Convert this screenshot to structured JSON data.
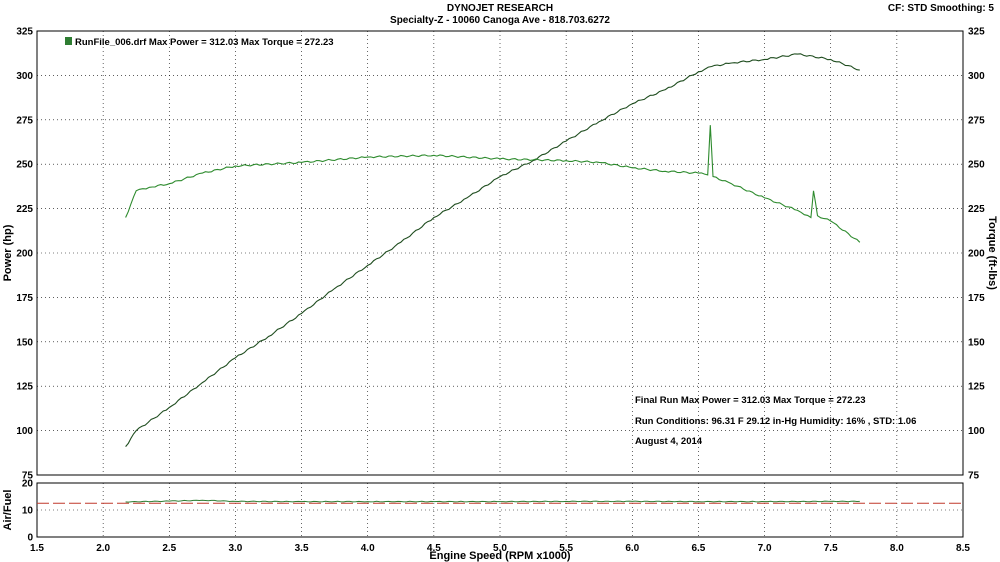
{
  "header": {
    "title": "DYNOJET RESEARCH",
    "subtitle": "Specialty-Z - 10060 Canoga Ave - 818.703.6272",
    "cf_info": "CF: STD  Smoothing: 5"
  },
  "legend": {
    "text": "RunFile_006.drf Max Power = 312.03     Max Torque = 272.23",
    "color": "#2e7d32"
  },
  "annotations": [
    "Final Run Max Power = 312.03  Max Torque = 272.23",
    "Run Conditions: 96.31 F 29.12 in-Hg Humidity: 16% , STD: 1.06",
    "August 4, 2014"
  ],
  "colors": {
    "power": "#1f4d1f",
    "torque": "#2e8b2e",
    "afr": "#2e7d32",
    "afr_target": "#c0392b"
  },
  "chart_data": [
    {
      "type": "line",
      "title": "",
      "xlabel": "Engine Speed (RPM x1000)",
      "ylabel": "Power (hp)",
      "ylabel_right": "Torque (ft-lbs)",
      "xlim": [
        1.5,
        8.5
      ],
      "ylim": [
        75,
        325
      ],
      "ylim_right": [
        75,
        325
      ],
      "x_ticks": [
        "1.5",
        "2.0",
        "2.5",
        "3.0",
        "3.5",
        "4.0",
        "4.5",
        "5.0",
        "5.5",
        "6.0",
        "6.5",
        "7.0",
        "7.5",
        "8.0",
        "8.5"
      ],
      "y_ticks": [
        "75",
        "100",
        "125",
        "150",
        "175",
        "200",
        "225",
        "250",
        "275",
        "300",
        "325"
      ],
      "grid": true,
      "series": [
        {
          "name": "Power",
          "x": [
            2.17,
            2.25,
            2.5,
            2.75,
            3.0,
            3.25,
            3.5,
            3.75,
            4.0,
            4.25,
            4.5,
            4.75,
            5.0,
            5.25,
            5.5,
            5.75,
            6.0,
            6.25,
            6.5,
            6.6,
            6.75,
            7.0,
            7.25,
            7.5,
            7.72
          ],
          "values": [
            91,
            100,
            113,
            127,
            141,
            153,
            166,
            180,
            193,
            206,
            220,
            231,
            243,
            252,
            263,
            274,
            284,
            292,
            302,
            305,
            307,
            309,
            312,
            309,
            303
          ]
        },
        {
          "name": "Torque",
          "x": [
            2.17,
            2.25,
            2.35,
            2.5,
            2.75,
            3.0,
            3.5,
            4.0,
            4.5,
            5.0,
            5.5,
            5.75,
            6.0,
            6.25,
            6.5,
            6.57,
            6.59,
            6.61,
            6.75,
            7.0,
            7.25,
            7.35,
            7.37,
            7.4,
            7.5,
            7.72
          ],
          "values": [
            220,
            235,
            237,
            239,
            245,
            249,
            251,
            254,
            255,
            253,
            252,
            251,
            248,
            246,
            245,
            244,
            272,
            243,
            239,
            231,
            224,
            220,
            235,
            221,
            218,
            206
          ]
        }
      ]
    },
    {
      "type": "line",
      "title": "",
      "xlabel": "Engine Speed (RPM x1000)",
      "ylabel": "Air/Fuel",
      "xlim": [
        1.5,
        8.5
      ],
      "ylim": [
        0,
        20
      ],
      "y_ticks": [
        "0",
        "10",
        "20"
      ],
      "series": [
        {
          "x": [
            2.17,
            2.5,
            2.75,
            3.0,
            3.5,
            4.0,
            4.5,
            5.0,
            5.5,
            6.0,
            6.5,
            7.0,
            7.5,
            7.72
          ],
          "values": [
            13.0,
            13.3,
            13.6,
            13.2,
            13.1,
            13.1,
            13.1,
            13.1,
            13.2,
            13.2,
            13.1,
            13.1,
            13.2,
            13.2
          ]
        },
        {
          "x": [
            1.5,
            8.5
          ],
          "values": [
            12.5,
            12.5
          ],
          "style": "dashed"
        }
      ]
    }
  ]
}
